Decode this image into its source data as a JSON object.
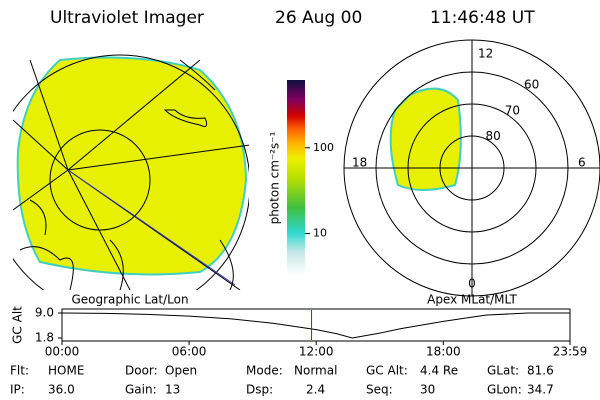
{
  "header": {
    "title": "Ultraviolet Imager",
    "date": "26 Aug 00",
    "time": "11:46:48 UT"
  },
  "panels": {
    "geo_label": "Geographic Lat/Lon",
    "apex_label": "Apex MLat/MLT"
  },
  "colorbar": {
    "label": "photon cm⁻²s⁻¹",
    "lim": [
      3.2,
      617
    ],
    "ticks": [
      10,
      100
    ],
    "log": true
  },
  "polar": {
    "mlt_labels": [
      "12",
      "18",
      "6",
      "0"
    ],
    "mlat_ticks": [
      60,
      70,
      80
    ],
    "mlat_lim": [
      50,
      90
    ]
  },
  "altitude": {
    "label": "GC Alt",
    "ylim": [
      1.8,
      9.0
    ],
    "yticks": [
      1.8,
      {
        "value": 9.0,
        "label": "9.0"
      }
    ],
    "xlim": [
      0,
      23.98
    ],
    "xticks": [
      {
        "value": 0,
        "label": "00:00"
      },
      {
        "value": 6,
        "label": "06:00"
      },
      {
        "value": 12,
        "label": "12:00"
      },
      {
        "value": 18,
        "label": "18:00"
      },
      {
        "value": 23.98,
        "label": "23:59"
      }
    ],
    "x": [
      0,
      2,
      4,
      6,
      8,
      10,
      12,
      13,
      13.7,
      15,
      16,
      18,
      20,
      22,
      23.98
    ],
    "values": [
      9.0,
      8.9,
      8.6,
      8.1,
      7.3,
      6.0,
      4.2,
      3.0,
      1.8,
      3.2,
      4.5,
      6.6,
      8.4,
      9.0,
      9.0
    ],
    "marker_hour": 11.78,
    "color": "#000000",
    "marker_color": "#e00000"
  },
  "status": [
    [
      [
        "Flt:",
        "HOME"
      ],
      [
        "Door:",
        "Open"
      ],
      [
        "Mode:",
        "Normal"
      ],
      [
        "GC Alt:",
        "4.4 Re"
      ],
      [
        "GLat:",
        "81.6"
      ]
    ],
    [
      [
        "IP:",
        "36.0"
      ],
      [
        "Gain:",
        "13"
      ],
      [
        "Dsp:",
        "2.4"
      ],
      [
        "Seq:",
        "30"
      ],
      [
        "GLon:",
        "34.7"
      ]
    ]
  ]
}
